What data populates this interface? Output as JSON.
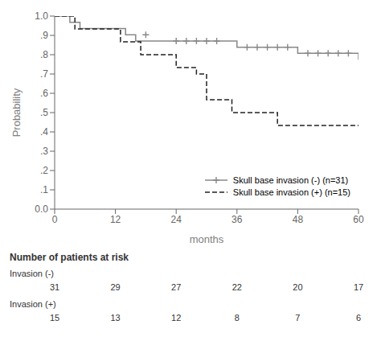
{
  "chart_data": {
    "type": "line",
    "x_label": "months",
    "y_label": "Probability",
    "xlim": [
      0,
      60
    ],
    "ylim": [
      0.0,
      1.0
    ],
    "xticks": [
      0,
      12,
      24,
      36,
      48,
      60
    ],
    "yticks": [
      {
        "value": 0.0,
        "label": "0.0"
      },
      {
        "value": 0.1,
        "label": ".1"
      },
      {
        "value": 0.2,
        "label": ".2"
      },
      {
        "value": 0.3,
        "label": ".3"
      },
      {
        "value": 0.4,
        "label": ".4"
      },
      {
        "value": 0.5,
        "label": ".5"
      },
      {
        "value": 0.6,
        "label": ".6"
      },
      {
        "value": 0.7,
        "label": ".7"
      },
      {
        "value": 0.8,
        "label": ".8"
      },
      {
        "value": 0.9,
        "label": ".9"
      },
      {
        "value": 1.0,
        "label": "1.0"
      }
    ],
    "grid": false,
    "legend": "lower right",
    "series": [
      {
        "name": "Skull base invasion (-) (n=31)",
        "color": "#888888",
        "line_style": "solid",
        "marker": "plus",
        "x": [
          0,
          3,
          5,
          8,
          14,
          16,
          22,
          34,
          36,
          48,
          60
        ],
        "values": [
          1.0,
          0.968,
          0.935,
          0.935,
          0.903,
          0.871,
          0.871,
          0.871,
          0.839,
          0.807,
          0.774
        ],
        "censor_x": [
          18,
          24,
          26,
          28,
          30,
          32,
          38,
          40,
          42,
          44,
          46,
          50,
          52,
          54,
          56,
          58
        ],
        "censor_values": [
          0.903,
          0.871,
          0.871,
          0.871,
          0.871,
          0.871,
          0.839,
          0.839,
          0.839,
          0.839,
          0.839,
          0.807,
          0.807,
          0.807,
          0.807,
          0.807
        ]
      },
      {
        "name": "Skull base invasion (+) (n=15)",
        "color": "#222222",
        "line_style": "dashed",
        "x": [
          0,
          4,
          6,
          13,
          17,
          24,
          28,
          30,
          35,
          44,
          57,
          60
        ],
        "values": [
          1.0,
          0.933,
          0.933,
          0.867,
          0.8,
          0.733,
          0.7,
          0.567,
          0.5,
          0.433,
          0.433,
          0.433
        ]
      }
    ],
    "risk_table": {
      "title": "Number of patients at risk",
      "times": [
        0,
        12,
        24,
        36,
        48,
        60
      ],
      "rows": [
        {
          "label": "Invasion (-)",
          "counts": [
            31,
            29,
            27,
            22,
            20,
            17
          ]
        },
        {
          "label": "Invasion (+)",
          "counts": [
            15,
            13,
            12,
            8,
            7,
            6
          ]
        }
      ]
    }
  }
}
